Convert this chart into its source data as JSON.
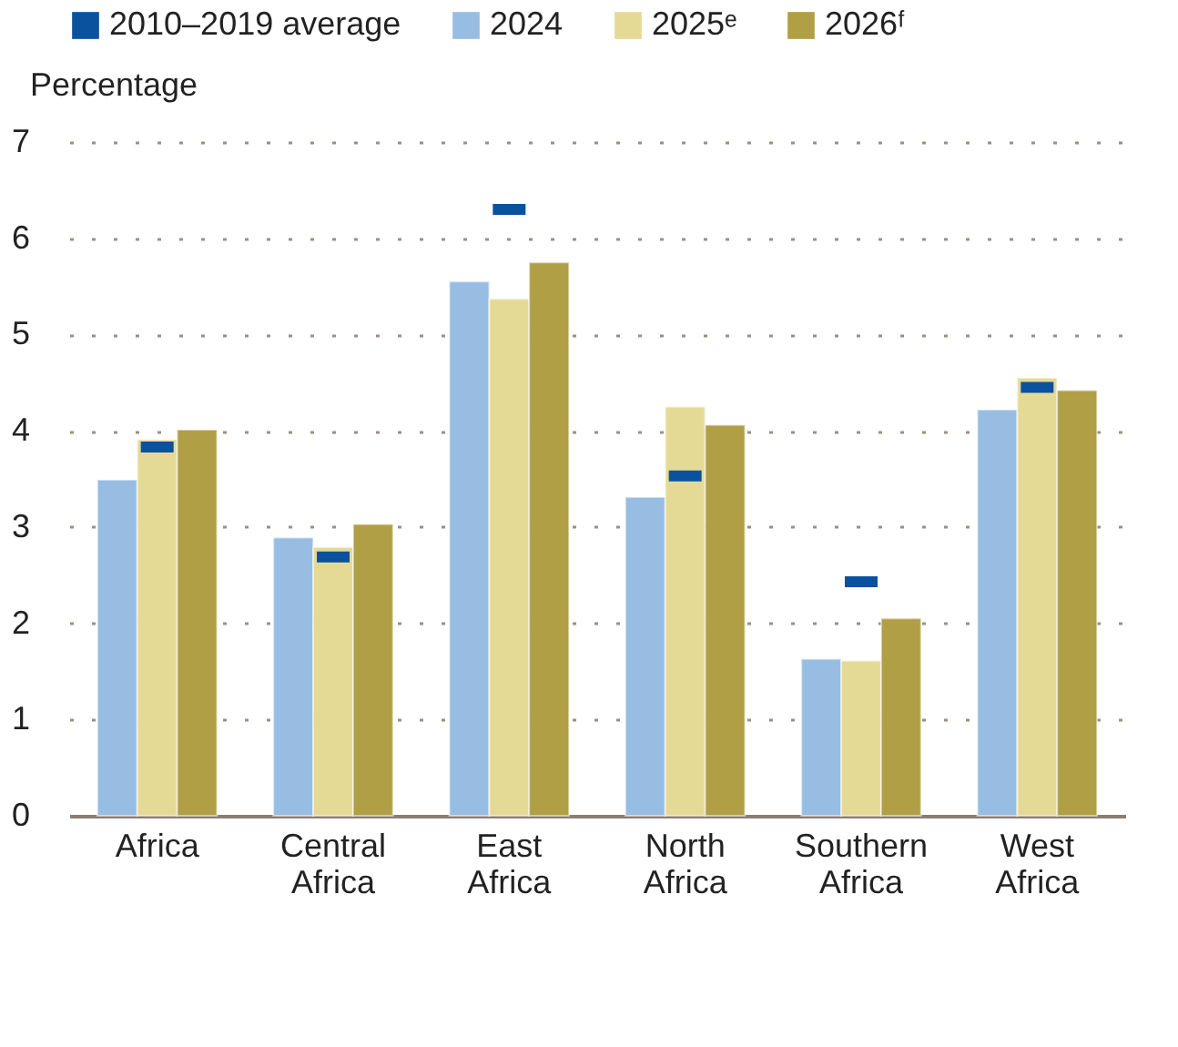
{
  "chart_data": {
    "type": "bar",
    "ylabel": "Percentage",
    "categories": [
      "Africa",
      "Central Africa",
      "East Africa",
      "North Africa",
      "Southern Africa",
      "West Africa"
    ],
    "series": [
      {
        "name": "2010–2019 average",
        "type": "scatter",
        "color": "#0b529e",
        "values": [
          3.83,
          2.69,
          6.3,
          3.53,
          2.43,
          4.45
        ]
      },
      {
        "name": "2024",
        "color": "#97bde3",
        "values": [
          3.49,
          2.89,
          5.55,
          3.31,
          1.63,
          4.22
        ]
      },
      {
        "name": "2025ᵉ",
        "color": "#e4da96",
        "values": [
          3.91,
          2.79,
          5.37,
          4.25,
          1.61,
          4.55
        ]
      },
      {
        "name": "2026ᶠ",
        "color": "#b09f45",
        "values": [
          4.01,
          3.03,
          5.75,
          4.06,
          2.05,
          4.42
        ]
      }
    ],
    "ylim": [
      0,
      7
    ],
    "yticks": [
      0,
      1,
      2,
      3,
      4,
      5,
      6,
      7
    ],
    "grid": "y",
    "legend": "top left"
  }
}
